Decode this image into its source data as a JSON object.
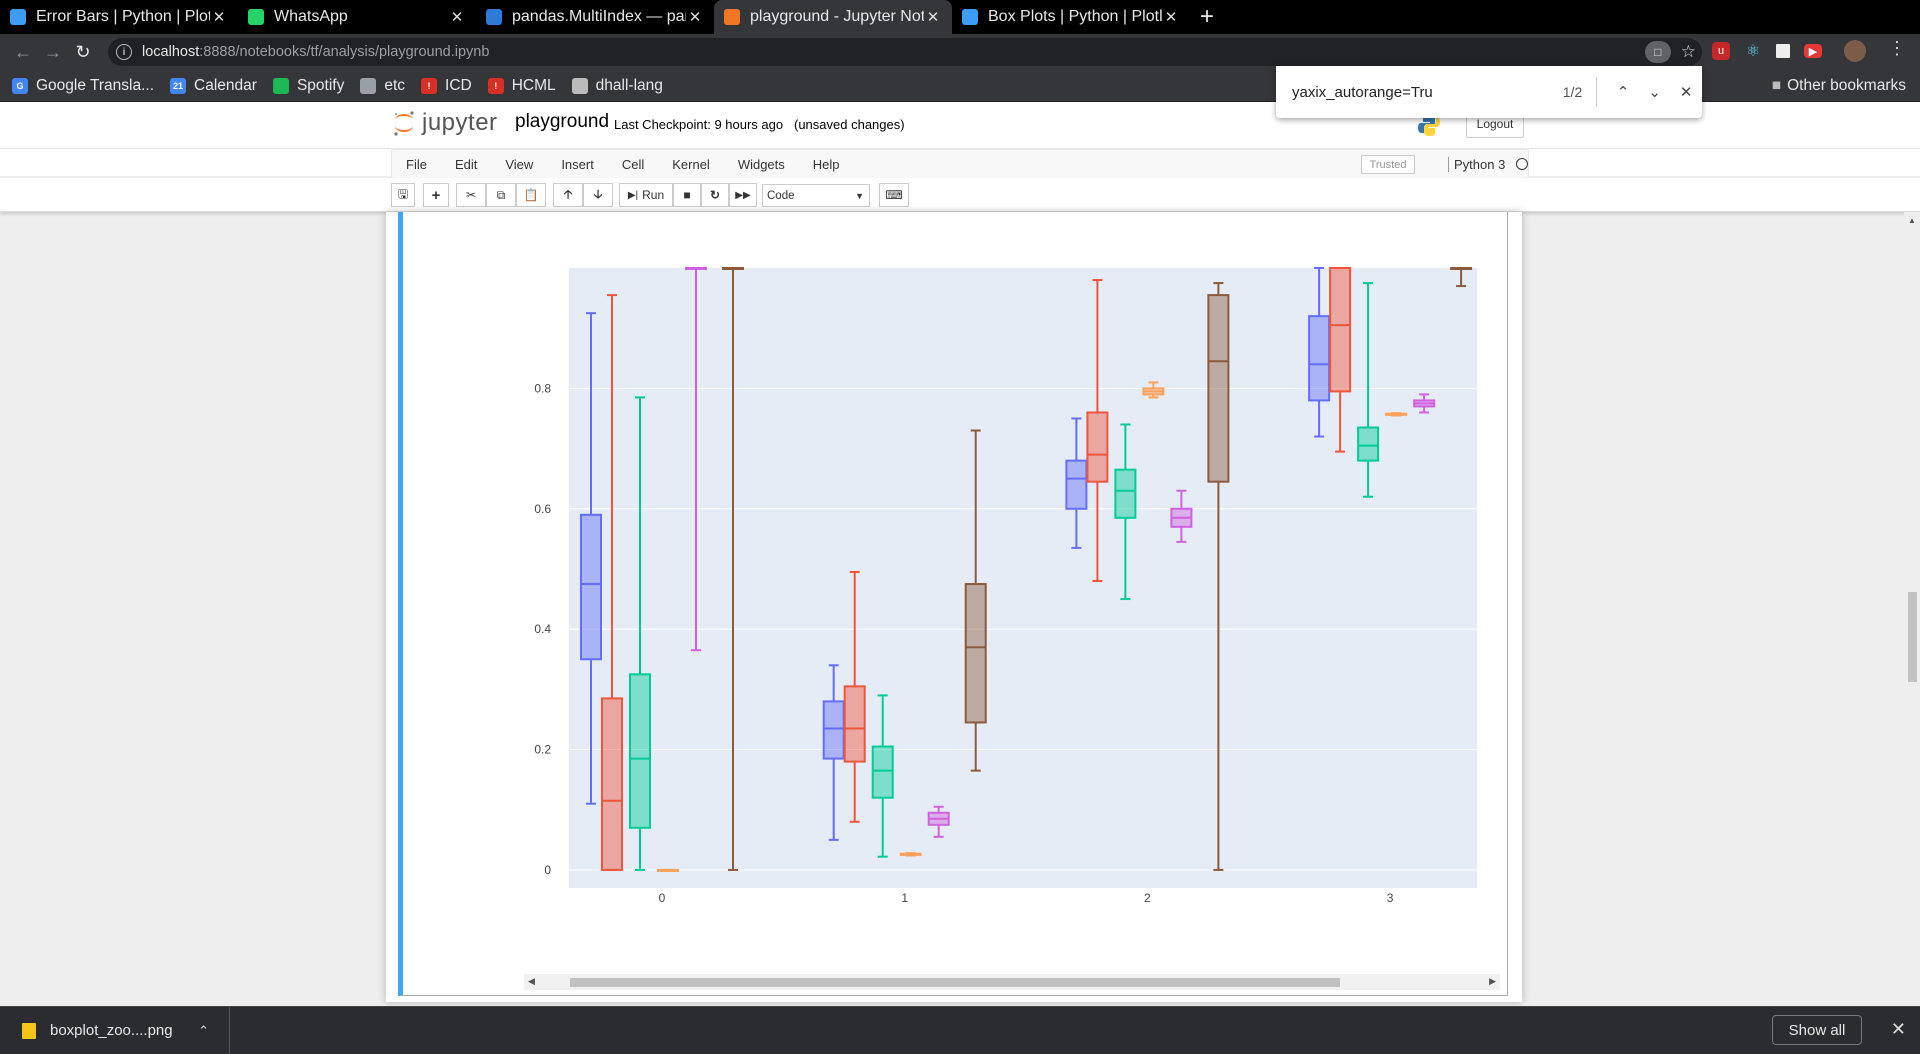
{
  "browser": {
    "tabs": [
      {
        "title": "Error Bars | Python | Plotly",
        "icon": "plotly-icon",
        "color": "#3d9df4"
      },
      {
        "title": "WhatsApp",
        "icon": "whatsapp-icon",
        "color": "#25d366"
      },
      {
        "title": "pandas.MultiIndex — pan",
        "icon": "pandas-icon",
        "color": "#2d7bd6"
      },
      {
        "title": "playground - Jupyter Note",
        "icon": "jupyter-icon",
        "color": "#f37626"
      },
      {
        "title": "Box Plots | Python | Plotly",
        "icon": "plotly-icon",
        "color": "#3d9df4"
      }
    ],
    "url_host": "localhost",
    "url_path": ":8888/notebooks/tf/analysis/playground.ipynb",
    "bookmarks": [
      {
        "label": "Google Transla...",
        "color": "#4285f4",
        "glyph": "G"
      },
      {
        "label": "Calendar",
        "color": "#4285f4",
        "glyph": "21"
      },
      {
        "label": "Spotify",
        "color": "#1db954",
        "glyph": ""
      },
      {
        "label": "etc",
        "color": "#9aa0a6",
        "glyph": ""
      },
      {
        "label": "ICD",
        "color": "#d93025",
        "glyph": "!"
      },
      {
        "label": "HCML",
        "color": "#d93025",
        "glyph": "!"
      },
      {
        "label": "dhall-lang",
        "color": "#bbbbbb",
        "glyph": ""
      }
    ],
    "other_bookmarks": "Other bookmarks",
    "find": {
      "query": "yaxix_autorange=Tru",
      "count": "1/2"
    }
  },
  "jupyter": {
    "logo_text": "jupyter",
    "notebook_name": "playground",
    "checkpoint": "Last Checkpoint: 9 hours ago",
    "unsaved": "(unsaved changes)",
    "logout": "Logout",
    "menu": [
      "File",
      "Edit",
      "View",
      "Insert",
      "Cell",
      "Kernel",
      "Widgets",
      "Help"
    ],
    "trusted": "Trusted",
    "kernel": "Python 3",
    "run_label": "Run",
    "cell_type": "Code"
  },
  "download": {
    "filename": "boxplot_zoo....png",
    "show_all": "Show all"
  },
  "chart_data": {
    "type": "box",
    "x_ticks": [
      "0",
      "1",
      "2",
      "3"
    ],
    "y_ticks": [
      "0",
      "0.2",
      "0.4",
      "0.6",
      "0.8"
    ],
    "y_range": [
      -0.03,
      1.0
    ],
    "series": [
      {
        "name": "blue",
        "color": "#636efa",
        "boxes": [
          {
            "x": 0,
            "lo": 0.11,
            "q1": 0.35,
            "med": 0.475,
            "q3": 0.59,
            "hi": 0.925
          },
          {
            "x": 1,
            "lo": 0.05,
            "q1": 0.185,
            "med": 0.235,
            "q3": 0.28,
            "hi": 0.34
          },
          {
            "x": 2,
            "lo": 0.535,
            "q1": 0.6,
            "med": 0.65,
            "q3": 0.68,
            "hi": 0.75
          },
          {
            "x": 3,
            "lo": 0.72,
            "q1": 0.78,
            "med": 0.84,
            "q3": 0.92,
            "hi": 1.0
          }
        ]
      },
      {
        "name": "red",
        "color": "#ef553b",
        "boxes": [
          {
            "x": 0,
            "lo": 0.0,
            "q1": 0.0,
            "med": 0.115,
            "q3": 0.285,
            "hi": 0.955
          },
          {
            "x": 1,
            "lo": 0.08,
            "q1": 0.18,
            "med": 0.235,
            "q3": 0.305,
            "hi": 0.495
          },
          {
            "x": 2,
            "lo": 0.48,
            "q1": 0.645,
            "med": 0.69,
            "q3": 0.76,
            "hi": 0.98
          },
          {
            "x": 3,
            "lo": 0.695,
            "q1": 0.795,
            "med": 0.905,
            "q3": 1.0,
            "hi": 1.0
          }
        ]
      },
      {
        "name": "green",
        "color": "#00cc96",
        "boxes": [
          {
            "x": 0,
            "lo": 0.0,
            "q1": 0.07,
            "med": 0.185,
            "q3": 0.325,
            "hi": 0.785
          },
          {
            "x": 1,
            "lo": 0.022,
            "q1": 0.12,
            "med": 0.165,
            "q3": 0.205,
            "hi": 0.29
          },
          {
            "x": 2,
            "lo": 0.45,
            "q1": 0.585,
            "med": 0.63,
            "q3": 0.665,
            "hi": 0.74
          },
          {
            "x": 3,
            "lo": 0.62,
            "q1": 0.68,
            "med": 0.705,
            "q3": 0.735,
            "hi": 0.975
          }
        ]
      },
      {
        "name": "orange",
        "color": "#ffa15a",
        "boxes": [
          {
            "x": 0,
            "lo": 0.0,
            "q1": 0.0,
            "med": 0.0,
            "q3": 0.0,
            "hi": 0.0
          },
          {
            "x": 1,
            "lo": 0.024,
            "q1": 0.025,
            "med": 0.026,
            "q3": 0.027,
            "hi": 0.028
          },
          {
            "x": 2,
            "lo": 0.785,
            "q1": 0.79,
            "med": 0.795,
            "q3": 0.8,
            "hi": 0.81
          },
          {
            "x": 3,
            "lo": 0.755,
            "q1": 0.756,
            "med": 0.757,
            "q3": 0.758,
            "hi": 0.759
          }
        ]
      },
      {
        "name": "violet",
        "color": "#d162de",
        "boxes": [
          {
            "x": 0,
            "lo": 0.365,
            "q1": 1.0,
            "med": 1.0,
            "q3": 1.0,
            "hi": 1.0
          },
          {
            "x": 1,
            "lo": 0.055,
            "q1": 0.075,
            "med": 0.085,
            "q3": 0.095,
            "hi": 0.105
          },
          {
            "x": 2,
            "lo": 0.545,
            "q1": 0.57,
            "med": 0.585,
            "q3": 0.6,
            "hi": 0.63
          },
          {
            "x": 3,
            "lo": 0.76,
            "q1": 0.77,
            "med": 0.775,
            "q3": 0.78,
            "hi": 0.79
          }
        ]
      },
      {
        "name": "brown",
        "color": "#8c5a3c",
        "boxes": [
          {
            "x": 0,
            "lo": 0.0,
            "q1": 1.0,
            "med": 1.0,
            "q3": 1.0,
            "hi": 1.0
          },
          {
            "x": 1,
            "lo": 0.165,
            "q1": 0.245,
            "med": 0.37,
            "q3": 0.475,
            "hi": 0.73
          },
          {
            "x": 2,
            "lo": 0.0,
            "q1": 0.645,
            "med": 0.845,
            "q3": 0.955,
            "hi": 0.975
          },
          {
            "x": 3,
            "lo": 0.97,
            "q1": 1.0,
            "med": 1.0,
            "q3": 1.0,
            "hi": 1.0
          }
        ]
      }
    ]
  }
}
